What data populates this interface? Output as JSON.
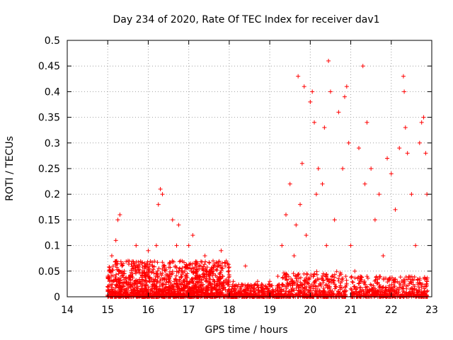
{
  "chart_data": {
    "type": "scatter",
    "title": "Day 234 of 2020, Rate Of TEC Index for receiver dav1",
    "xlabel": "GPS time / hours",
    "ylabel": "ROTI / TECUs",
    "xlim": [
      14,
      23
    ],
    "ylim": [
      0,
      0.5
    ],
    "x_ticks": [
      14,
      15,
      16,
      17,
      18,
      19,
      20,
      21,
      22,
      23
    ],
    "y_ticks": [
      0,
      0.05,
      0.1,
      0.15,
      0.2,
      0.25,
      0.3,
      0.35,
      0.4,
      0.45,
      0.5
    ],
    "x_tick_labels": [
      "14",
      "15",
      "16",
      "17",
      "18",
      "19",
      "20",
      "21",
      "22",
      "23"
    ],
    "y_tick_labels": [
      "0",
      "0.05",
      "0.1",
      "0.15",
      "0.2",
      "0.25",
      "0.3",
      "0.35",
      "0.4",
      "0.45",
      "0.5"
    ],
    "grid": true,
    "marker": "+",
    "marker_color": "#ff0000",
    "series": [
      {
        "points": [
          [
            15.0,
            0.02
          ],
          [
            15.05,
            0.05
          ],
          [
            15.1,
            0.08
          ],
          [
            15.15,
            0.03
          ],
          [
            15.2,
            0.11
          ],
          [
            15.25,
            0.15
          ],
          [
            15.3,
            0.16
          ],
          [
            15.35,
            0.06
          ],
          [
            15.4,
            0.02
          ],
          [
            15.5,
            0.07
          ],
          [
            15.6,
            0.04
          ],
          [
            15.7,
            0.1
          ],
          [
            15.8,
            0.03
          ],
          [
            15.9,
            0.06
          ],
          [
            16.0,
            0.09
          ],
          [
            16.1,
            0.05
          ],
          [
            16.2,
            0.1
          ],
          [
            16.25,
            0.18
          ],
          [
            16.3,
            0.21
          ],
          [
            16.35,
            0.2
          ],
          [
            16.4,
            0.06
          ],
          [
            16.5,
            0.03
          ],
          [
            16.6,
            0.15
          ],
          [
            16.7,
            0.1
          ],
          [
            16.75,
            0.14
          ],
          [
            16.8,
            0.07
          ],
          [
            16.9,
            0.05
          ],
          [
            17.0,
            0.1
          ],
          [
            17.1,
            0.12
          ],
          [
            17.2,
            0.04
          ],
          [
            17.3,
            0.06
          ],
          [
            17.4,
            0.08
          ],
          [
            17.5,
            0.05
          ],
          [
            17.6,
            0.07
          ],
          [
            17.7,
            0.03
          ],
          [
            17.8,
            0.09
          ],
          [
            17.9,
            0.06
          ],
          [
            18.0,
            0.04
          ],
          [
            18.1,
            0.03
          ],
          [
            18.2,
            0.02
          ],
          [
            18.3,
            0.02
          ],
          [
            18.4,
            0.06
          ],
          [
            18.5,
            0.02
          ],
          [
            18.6,
            0.01
          ],
          [
            18.7,
            0.03
          ],
          [
            18.8,
            0.01
          ],
          [
            18.9,
            0.02
          ],
          [
            19.0,
            0.03
          ],
          [
            19.2,
            0.04
          ],
          [
            19.3,
            0.1
          ],
          [
            19.4,
            0.16
          ],
          [
            19.5,
            0.22
          ],
          [
            19.6,
            0.08
          ],
          [
            19.65,
            0.14
          ],
          [
            19.7,
            0.43
          ],
          [
            19.75,
            0.18
          ],
          [
            19.8,
            0.26
          ],
          [
            19.85,
            0.41
          ],
          [
            19.9,
            0.12
          ],
          [
            20.0,
            0.38
          ],
          [
            20.05,
            0.4
          ],
          [
            20.1,
            0.34
          ],
          [
            20.15,
            0.2
          ],
          [
            20.2,
            0.25
          ],
          [
            20.3,
            0.22
          ],
          [
            20.35,
            0.33
          ],
          [
            20.4,
            0.1
          ],
          [
            20.45,
            0.46
          ],
          [
            20.5,
            0.4
          ],
          [
            20.6,
            0.15
          ],
          [
            20.7,
            0.36
          ],
          [
            20.8,
            0.25
          ],
          [
            20.85,
            0.39
          ],
          [
            20.9,
            0.41
          ],
          [
            20.95,
            0.3
          ],
          [
            21.0,
            0.1
          ],
          [
            21.1,
            0.05
          ],
          [
            21.2,
            0.29
          ],
          [
            21.3,
            0.45
          ],
          [
            21.35,
            0.22
          ],
          [
            21.4,
            0.34
          ],
          [
            21.5,
            0.25
          ],
          [
            21.6,
            0.15
          ],
          [
            21.7,
            0.2
          ],
          [
            21.8,
            0.08
          ],
          [
            21.9,
            0.27
          ],
          [
            22.0,
            0.24
          ],
          [
            22.1,
            0.17
          ],
          [
            22.2,
            0.29
          ],
          [
            22.3,
            0.43
          ],
          [
            22.32,
            0.4
          ],
          [
            22.35,
            0.33
          ],
          [
            22.4,
            0.28
          ],
          [
            22.5,
            0.2
          ],
          [
            22.6,
            0.1
          ],
          [
            22.7,
            0.3
          ],
          [
            22.75,
            0.34
          ],
          [
            22.8,
            0.35
          ],
          [
            22.85,
            0.28
          ],
          [
            22.88,
            0.2
          ]
        ]
      }
    ]
  }
}
